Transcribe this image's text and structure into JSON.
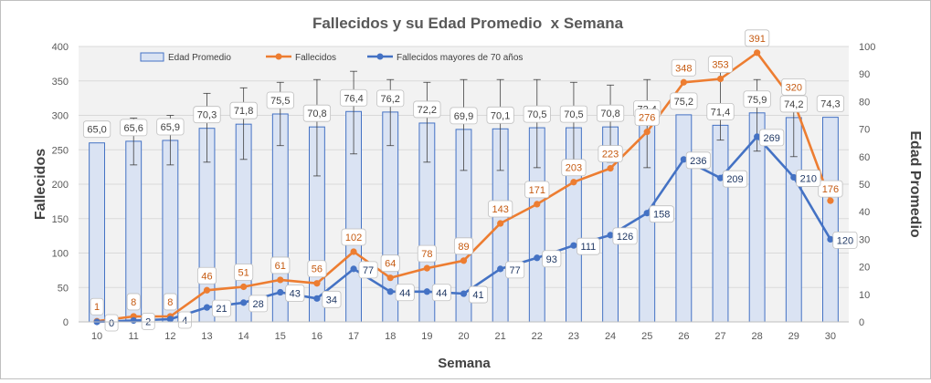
{
  "chart_data": {
    "type": "bar+line",
    "title": "Fallecidos y su Edad Promedio  x Semana",
    "xlabel": "Semana",
    "ylabel_left": "Fallecidos",
    "ylabel_right": "Edad Promedio",
    "categories": [
      "10",
      "11",
      "12",
      "13",
      "14",
      "15",
      "16",
      "17",
      "18",
      "19",
      "20",
      "21",
      "22",
      "23",
      "24",
      "25",
      "26",
      "27",
      "28",
      "29",
      "30"
    ],
    "y_left": {
      "min": 0,
      "max": 400,
      "ticks": [
        "0",
        "50",
        "100",
        "150",
        "200",
        "250",
        "300",
        "350",
        "400"
      ]
    },
    "y_right": {
      "min": 0,
      "max": 100,
      "ticks": [
        "0",
        "10",
        "20",
        "30",
        "40",
        "50",
        "60",
        "70",
        "80",
        "90",
        "100"
      ]
    },
    "legend_position": "top",
    "grid": true,
    "series": [
      {
        "name": "Edad Promedio",
        "kind": "bar",
        "axis": "right",
        "color": "#dae3f3",
        "border": "#4472c4",
        "values": [
          65.0,
          65.6,
          65.9,
          70.3,
          71.8,
          75.5,
          70.8,
          76.4,
          76.2,
          72.2,
          69.9,
          70.1,
          70.5,
          70.5,
          70.8,
          72.4,
          75.2,
          71.4,
          75.9,
          74.2,
          74.3
        ],
        "labels": [
          "65,0",
          "65,6",
          "65,9",
          "70,3",
          "71,8",
          "75,5",
          "70,8",
          "76,4",
          "76,2",
          "72,2",
          "69,9",
          "70,1",
          "70,5",
          "70,5",
          "70,8",
          "72,4",
          "75,2",
          "71,4",
          "75,9",
          "74,2",
          "74,3"
        ],
        "error_low": [
          null,
          57,
          57,
          58,
          59,
          64,
          53,
          61,
          64,
          58,
          55,
          55,
          56,
          58,
          58,
          56,
          null,
          66,
          62,
          60,
          null
        ],
        "error_high": [
          null,
          74,
          75,
          83,
          85,
          87,
          88,
          91,
          88,
          87,
          88,
          88,
          88,
          87,
          86,
          88,
          null,
          94,
          88,
          88,
          null
        ]
      },
      {
        "name": "Fallecidos",
        "kind": "line",
        "axis": "left",
        "color": "#ed7d31",
        "values": [
          1,
          8,
          8,
          46,
          51,
          61,
          56,
          102,
          64,
          78,
          89,
          143,
          171,
          203,
          223,
          276,
          348,
          353,
          391,
          320,
          176
        ]
      },
      {
        "name": "Fallecidos mayores de 70 años",
        "kind": "line",
        "axis": "left",
        "color": "#4472c4",
        "values": [
          0,
          2,
          4,
          21,
          28,
          43,
          34,
          77,
          44,
          44,
          41,
          77,
          93,
          111,
          126,
          158,
          236,
          209,
          269,
          210,
          120
        ]
      }
    ]
  }
}
